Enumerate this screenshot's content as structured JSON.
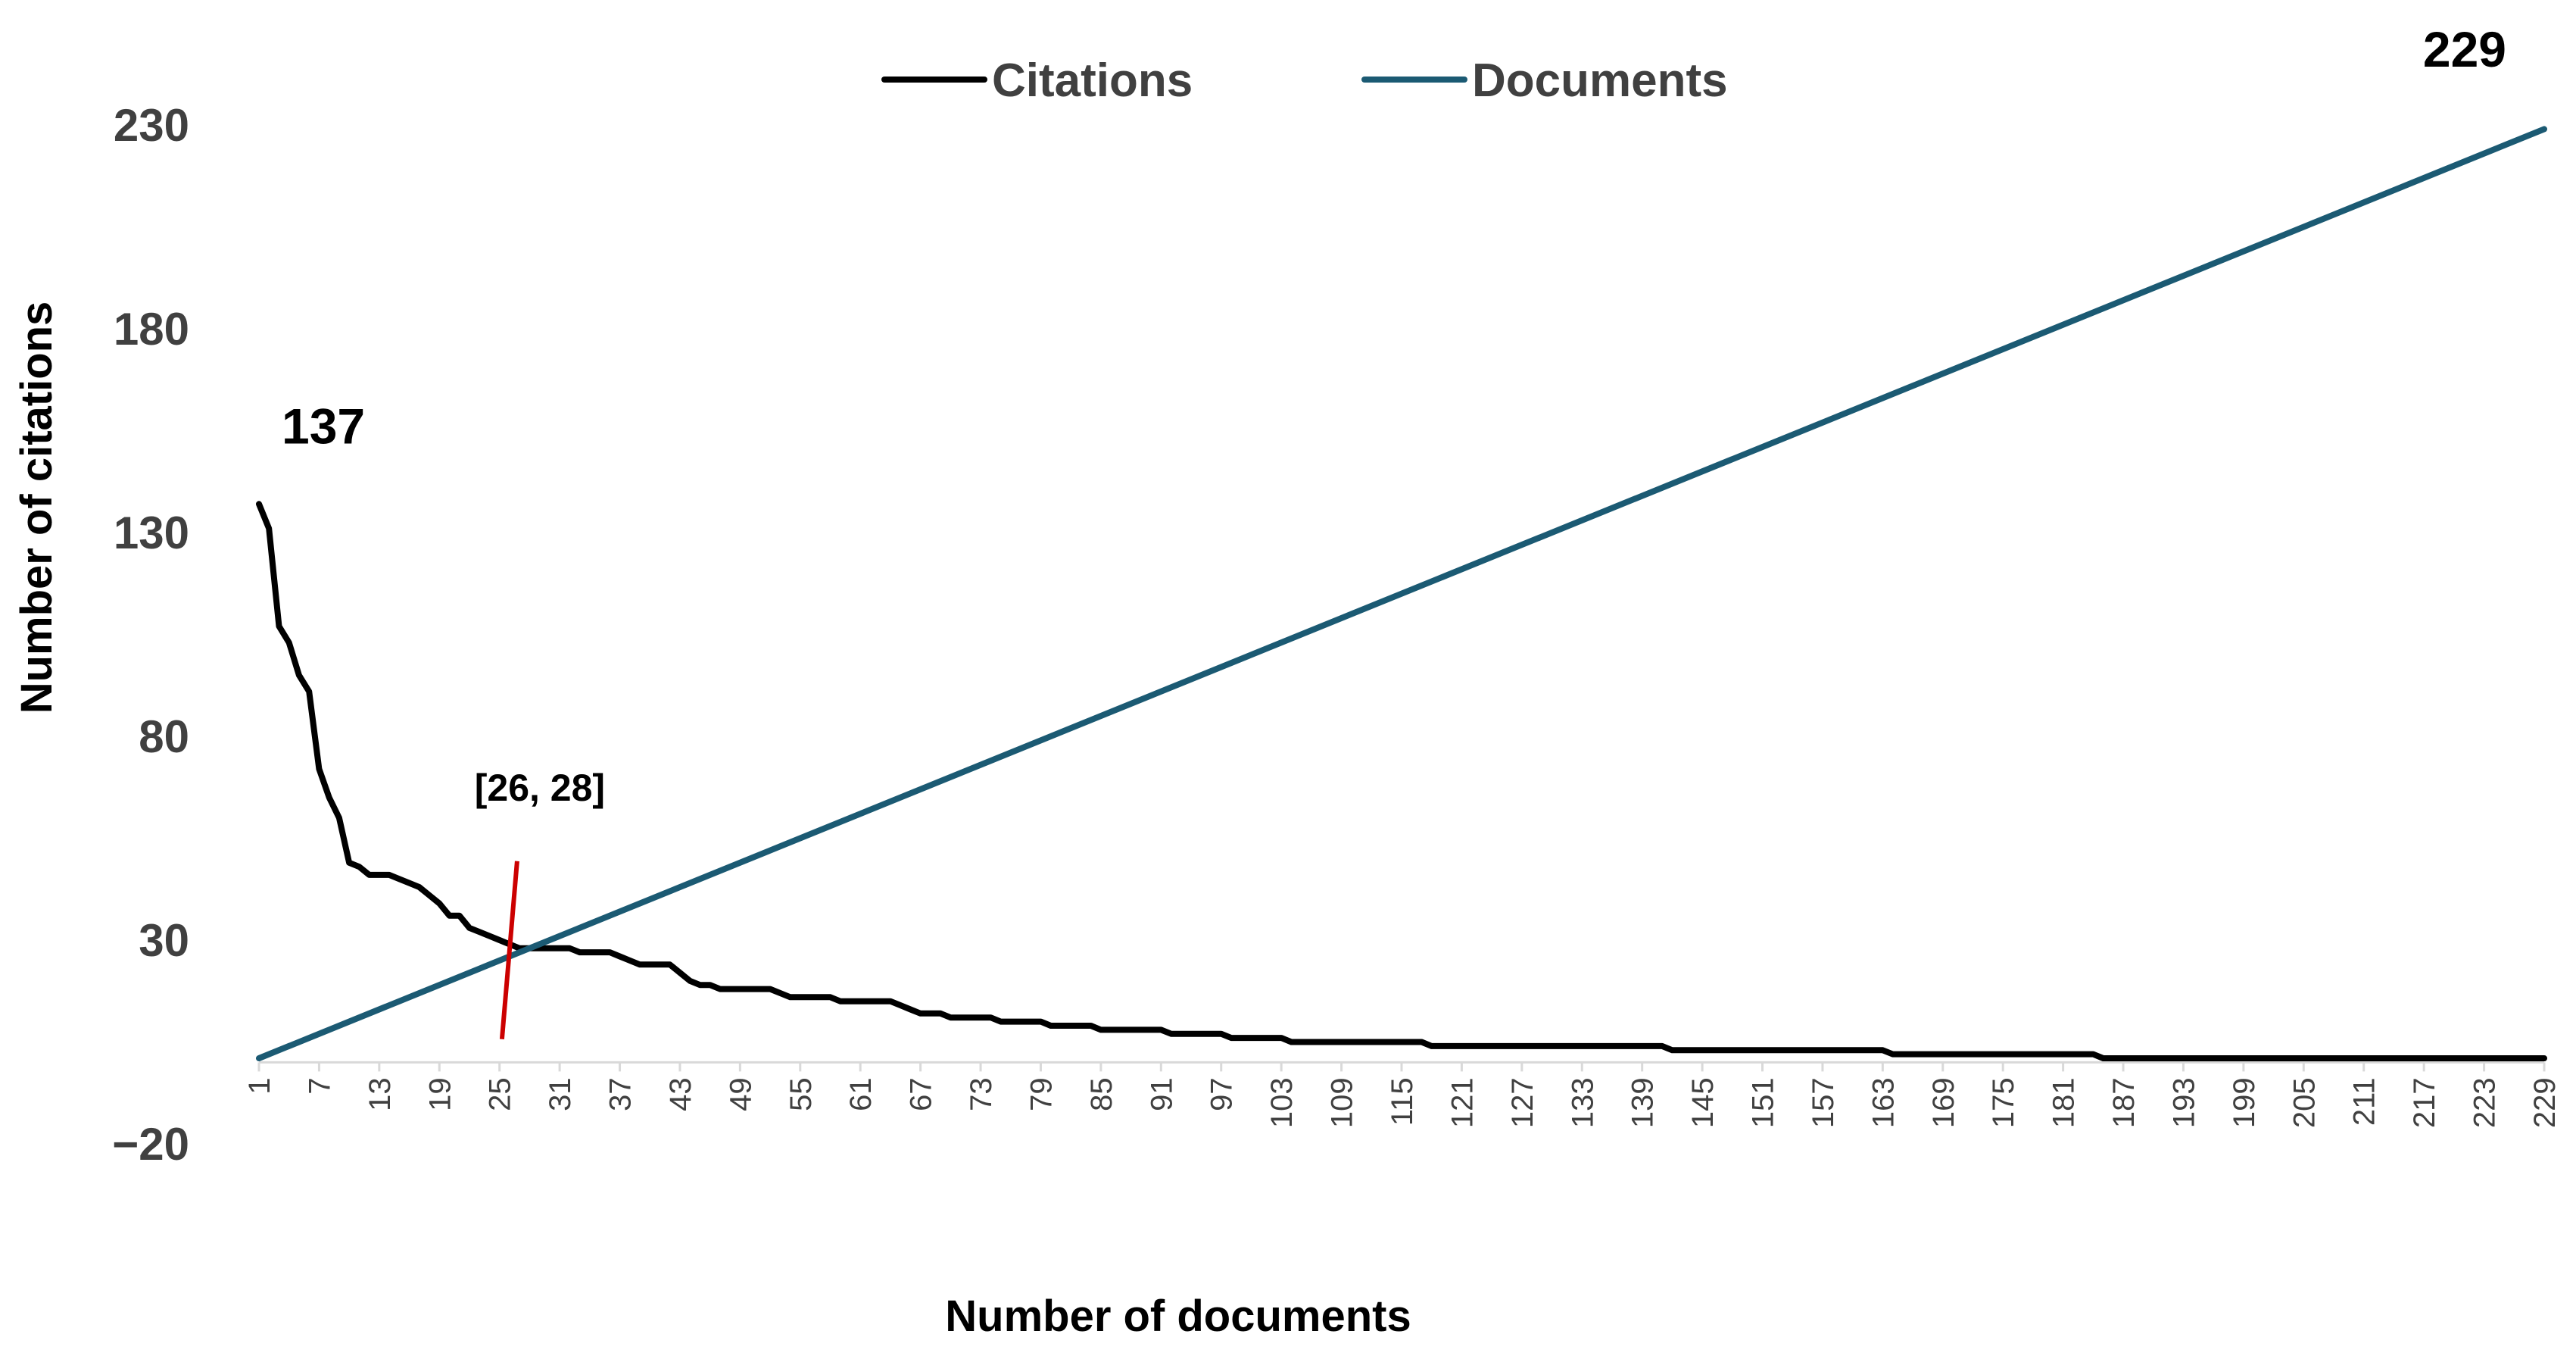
{
  "chart_data": {
    "type": "line",
    "xlabel": "Number of documents",
    "ylabel": "Number of citations",
    "ylim": [
      -20,
      230
    ],
    "xlim": [
      1,
      229
    ],
    "yticks": [
      -20,
      30,
      80,
      130,
      180,
      230
    ],
    "xticks": [
      1,
      7,
      13,
      19,
      25,
      31,
      37,
      43,
      49,
      55,
      61,
      67,
      73,
      79,
      85,
      91,
      97,
      103,
      109,
      115,
      121,
      127,
      133,
      139,
      145,
      151,
      157,
      163,
      169,
      175,
      181,
      187,
      193,
      199,
      205,
      211,
      217,
      223,
      229
    ],
    "grid": false,
    "legend_position": "top",
    "series": [
      {
        "name": "Citations",
        "color": "#000000",
        "points": [
          [
            1,
            137
          ],
          [
            2,
            131
          ],
          [
            3,
            107
          ],
          [
            4,
            103
          ],
          [
            5,
            95
          ],
          [
            6,
            91
          ],
          [
            7,
            72
          ],
          [
            8,
            65
          ],
          [
            9,
            60
          ],
          [
            10,
            49
          ],
          [
            11,
            48
          ],
          [
            12,
            46
          ],
          [
            13,
            46
          ],
          [
            14,
            46
          ],
          [
            15,
            45
          ],
          [
            16,
            44
          ],
          [
            17,
            43
          ],
          [
            18,
            41
          ],
          [
            19,
            39
          ],
          [
            20,
            36
          ],
          [
            21,
            36
          ],
          [
            22,
            33
          ],
          [
            23,
            32
          ],
          [
            24,
            31
          ],
          [
            25,
            30
          ],
          [
            26,
            29
          ],
          [
            27,
            28
          ],
          [
            28,
            28
          ],
          [
            29,
            28
          ],
          [
            30,
            28
          ],
          [
            31,
            28
          ],
          [
            32,
            28
          ],
          [
            33,
            27
          ],
          [
            34,
            27
          ],
          [
            35,
            27
          ],
          [
            36,
            27
          ],
          [
            37,
            26
          ],
          [
            38,
            25
          ],
          [
            39,
            24
          ],
          [
            40,
            24
          ],
          [
            41,
            24
          ],
          [
            42,
            24
          ],
          [
            43,
            22
          ],
          [
            44,
            20
          ],
          [
            45,
            19
          ],
          [
            46,
            19
          ],
          [
            47,
            18
          ],
          [
            48,
            18
          ],
          [
            49,
            18
          ],
          [
            50,
            18
          ],
          [
            51,
            18
          ],
          [
            52,
            18
          ],
          [
            53,
            17
          ],
          [
            54,
            16
          ],
          [
            55,
            16
          ],
          [
            56,
            16
          ],
          [
            57,
            16
          ],
          [
            58,
            16
          ],
          [
            59,
            15
          ],
          [
            60,
            15
          ],
          [
            61,
            15
          ],
          [
            62,
            15
          ],
          [
            63,
            15
          ],
          [
            64,
            15
          ],
          [
            65,
            14
          ],
          [
            66,
            13
          ],
          [
            67,
            12
          ],
          [
            68,
            12
          ],
          [
            69,
            12
          ],
          [
            70,
            11
          ],
          [
            71,
            11
          ],
          [
            72,
            11
          ],
          [
            73,
            11
          ],
          [
            74,
            11
          ],
          [
            75,
            10
          ],
          [
            76,
            10
          ],
          [
            77,
            10
          ],
          [
            78,
            10
          ],
          [
            79,
            10
          ],
          [
            80,
            9
          ],
          [
            81,
            9
          ],
          [
            82,
            9
          ],
          [
            83,
            9
          ],
          [
            84,
            9
          ],
          [
            85,
            8
          ],
          [
            86,
            8
          ],
          [
            87,
            8
          ],
          [
            88,
            8
          ],
          [
            89,
            8
          ],
          [
            90,
            8
          ],
          [
            91,
            8
          ],
          [
            92,
            7
          ],
          [
            93,
            7
          ],
          [
            94,
            7
          ],
          [
            95,
            7
          ],
          [
            96,
            7
          ],
          [
            97,
            7
          ],
          [
            98,
            6
          ],
          [
            99,
            6
          ],
          [
            100,
            6
          ],
          [
            101,
            6
          ],
          [
            102,
            6
          ],
          [
            103,
            6
          ],
          [
            104,
            5
          ],
          [
            105,
            5
          ],
          [
            106,
            5
          ],
          [
            107,
            5
          ],
          [
            108,
            5
          ],
          [
            109,
            5
          ],
          [
            110,
            5
          ],
          [
            111,
            5
          ],
          [
            112,
            5
          ],
          [
            113,
            5
          ],
          [
            114,
            5
          ],
          [
            115,
            5
          ],
          [
            116,
            5
          ],
          [
            117,
            5
          ],
          [
            118,
            4
          ],
          [
            119,
            4
          ],
          [
            120,
            4
          ],
          [
            121,
            4
          ],
          [
            122,
            4
          ],
          [
            123,
            4
          ],
          [
            124,
            4
          ],
          [
            125,
            4
          ],
          [
            126,
            4
          ],
          [
            127,
            4
          ],
          [
            128,
            4
          ],
          [
            129,
            4
          ],
          [
            130,
            4
          ],
          [
            131,
            4
          ],
          [
            132,
            4
          ],
          [
            133,
            4
          ],
          [
            134,
            4
          ],
          [
            135,
            4
          ],
          [
            136,
            4
          ],
          [
            137,
            4
          ],
          [
            138,
            4
          ],
          [
            139,
            4
          ],
          [
            140,
            4
          ],
          [
            141,
            4
          ],
          [
            142,
            3
          ],
          [
            143,
            3
          ],
          [
            144,
            3
          ],
          [
            145,
            3
          ],
          [
            146,
            3
          ],
          [
            147,
            3
          ],
          [
            148,
            3
          ],
          [
            149,
            3
          ],
          [
            150,
            3
          ],
          [
            151,
            3
          ],
          [
            152,
            3
          ],
          [
            153,
            3
          ],
          [
            154,
            3
          ],
          [
            155,
            3
          ],
          [
            156,
            3
          ],
          [
            157,
            3
          ],
          [
            158,
            3
          ],
          [
            159,
            3
          ],
          [
            160,
            3
          ],
          [
            161,
            3
          ],
          [
            162,
            3
          ],
          [
            163,
            3
          ],
          [
            164,
            2
          ],
          [
            165,
            2
          ],
          [
            166,
            2
          ],
          [
            167,
            2
          ],
          [
            168,
            2
          ],
          [
            169,
            2
          ],
          [
            170,
            2
          ],
          [
            171,
            2
          ],
          [
            172,
            2
          ],
          [
            173,
            2
          ],
          [
            174,
            2
          ],
          [
            175,
            2
          ],
          [
            176,
            2
          ],
          [
            177,
            2
          ],
          [
            178,
            2
          ],
          [
            179,
            2
          ],
          [
            180,
            2
          ],
          [
            181,
            2
          ],
          [
            182,
            2
          ],
          [
            183,
            2
          ],
          [
            184,
            2
          ],
          [
            185,
            1
          ],
          [
            186,
            1
          ],
          [
            187,
            1
          ],
          [
            188,
            1
          ],
          [
            189,
            1
          ],
          [
            190,
            1
          ],
          [
            191,
            1
          ],
          [
            192,
            1
          ],
          [
            193,
            1
          ],
          [
            194,
            1
          ],
          [
            195,
            1
          ],
          [
            196,
            1
          ],
          [
            197,
            1
          ],
          [
            198,
            1
          ],
          [
            199,
            1
          ],
          [
            200,
            1
          ],
          [
            201,
            1
          ],
          [
            202,
            1
          ],
          [
            203,
            1
          ],
          [
            204,
            1
          ],
          [
            205,
            1
          ],
          [
            206,
            1
          ],
          [
            207,
            1
          ],
          [
            208,
            1
          ],
          [
            209,
            1
          ],
          [
            210,
            1
          ],
          [
            211,
            1
          ],
          [
            212,
            1
          ],
          [
            213,
            1
          ],
          [
            214,
            1
          ],
          [
            215,
            1
          ],
          [
            216,
            1
          ],
          [
            217,
            1
          ],
          [
            218,
            1
          ],
          [
            219,
            1
          ],
          [
            220,
            1
          ],
          [
            221,
            1
          ],
          [
            222,
            1
          ],
          [
            223,
            1
          ],
          [
            224,
            1
          ],
          [
            225,
            1
          ],
          [
            226,
            1
          ],
          [
            227,
            1
          ],
          [
            228,
            1
          ],
          [
            229,
            1
          ]
        ]
      },
      {
        "name": "Documents",
        "color": "#1b5a73",
        "points": [
          [
            1,
            1
          ],
          [
            229,
            229
          ]
        ],
        "description": "y = x (linear)"
      }
    ],
    "annotations": [
      {
        "text": "137",
        "x": 1,
        "y": 137
      },
      {
        "text": "229",
        "x": 229,
        "y": 229
      },
      {
        "text": "[26, 28]",
        "x": 26,
        "y": 28,
        "marker": "red vertical line",
        "marker_color": "#cc0000"
      }
    ]
  }
}
